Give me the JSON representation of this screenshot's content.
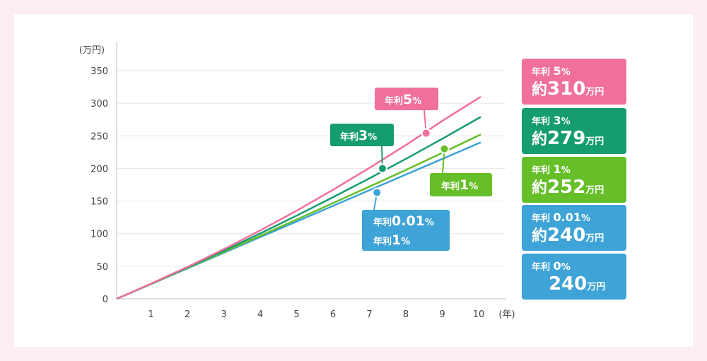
{
  "chart_data": {
    "type": "line",
    "y_unit": "(万円)",
    "x_unit": "(年)",
    "ylim": [
      0,
      350
    ],
    "xlim": [
      0,
      10
    ],
    "y_ticks": [
      "0",
      "50",
      "100",
      "150",
      "200",
      "250",
      "300",
      "350"
    ],
    "x_ticks": [
      "1",
      "2",
      "3",
      "4",
      "5",
      "6",
      "7",
      "8",
      "9",
      "10"
    ],
    "grid": true,
    "series": [
      {
        "name": "年利5%",
        "color": "#f06f9b",
        "x": [
          0,
          1,
          2,
          3,
          4,
          5,
          6,
          7,
          8,
          9,
          10
        ],
        "values": [
          0,
          24.7,
          50.4,
          77.7,
          106.6,
          137.0,
          169.2,
          202.8,
          238.0,
          275.0,
          310
        ]
      },
      {
        "name": "年利3%",
        "color": "#159c71",
        "x": [
          0,
          1,
          2,
          3,
          4,
          5,
          6,
          7,
          8,
          9,
          10
        ],
        "values": [
          0,
          24.4,
          49.4,
          75.3,
          101.9,
          129.3,
          157.6,
          186.5,
          216.4,
          247.3,
          279
        ]
      },
      {
        "name": "年利1%",
        "color": "#66be28",
        "x": [
          0,
          1,
          2,
          3,
          4,
          5,
          6,
          7,
          8,
          9,
          10
        ],
        "values": [
          0,
          24.1,
          48.6,
          73.2,
          98.1,
          123.1,
          148.3,
          173.6,
          199.2,
          225.5,
          252
        ]
      },
      {
        "name": "年利0.01%",
        "color": "#3ea3d6",
        "x": [
          0,
          1,
          2,
          3,
          4,
          5,
          6,
          7,
          8,
          9,
          10
        ],
        "values": [
          0,
          24,
          48,
          72,
          96,
          120,
          144,
          168,
          192,
          216,
          240
        ]
      }
    ],
    "markers": [
      {
        "series": 0,
        "x": 8.5,
        "y": 254
      },
      {
        "series": 1,
        "x": 7.3,
        "y": 200
      },
      {
        "series": 2,
        "x": 9.0,
        "y": 230
      },
      {
        "series": 3,
        "x": 7.15,
        "y": 163
      }
    ]
  },
  "callouts": {
    "c5": {
      "prefix": "年利",
      "num": "5",
      "pct": "%"
    },
    "c3": {
      "prefix": "年利",
      "num": "3",
      "pct": "%"
    },
    "c1": {
      "prefix": "年利",
      "num": "1",
      "pct": "%"
    },
    "c001": {
      "prefix": "年利",
      "num": "0.01",
      "pct": "%",
      "prefix2": "年利",
      "num2": "1",
      "pct2": "%"
    }
  },
  "results": [
    {
      "rate_prefix": "年利",
      "rate": "5",
      "pct": "%",
      "approx": "約",
      "amount": "310",
      "unit": "万円",
      "color": "#f06f9b"
    },
    {
      "rate_prefix": "年利",
      "rate": "3",
      "pct": "%",
      "approx": "約",
      "amount": "279",
      "unit": "万円",
      "color": "#159c71"
    },
    {
      "rate_prefix": "年利",
      "rate": "1",
      "pct": "%",
      "approx": "約",
      "amount": "252",
      "unit": "万円",
      "color": "#66be28"
    },
    {
      "rate_prefix": "年利",
      "rate": "0.01",
      "pct": "%",
      "approx": "約",
      "amount": "240",
      "unit": "万円",
      "color": "#3ea3d6"
    },
    {
      "rate_prefix": "年利",
      "rate": "0",
      "pct": "%",
      "approx": "",
      "amount": "240",
      "unit": "万円",
      "color": "#3ea3d6"
    }
  ]
}
